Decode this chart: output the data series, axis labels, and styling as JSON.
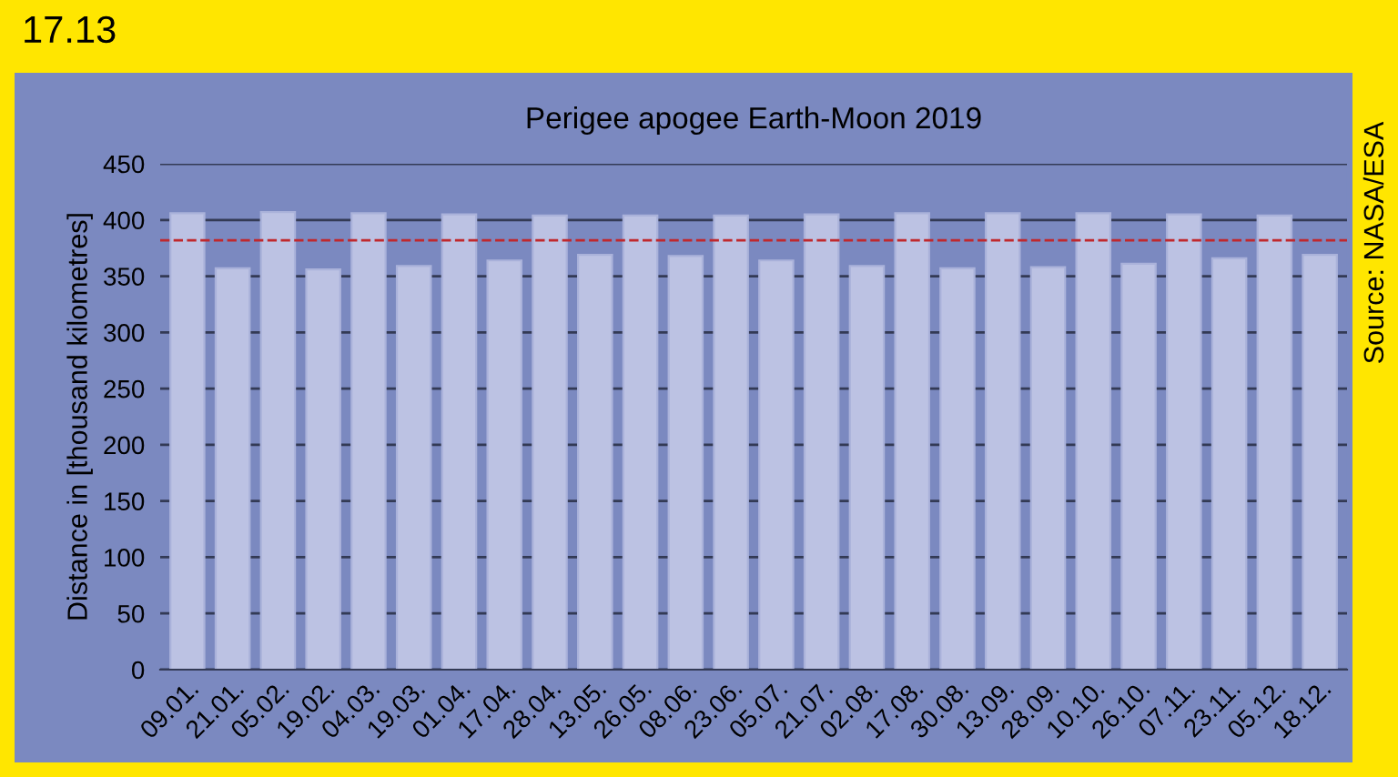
{
  "chart_data": {
    "type": "bar",
    "title": "Perigee apogee Earth-Moon 2019",
    "ylabel": "Distance in [thousand kilometres]",
    "annotations": [
      "17.13",
      "Source: NASA/ESA"
    ],
    "categories": [
      "09.01.",
      "21.01.",
      "05.02.",
      "19.02.",
      "04.03.",
      "19.03.",
      "01.04.",
      "17.04.",
      "28.04.",
      "13.05.",
      "26.05.",
      "08.06.",
      "23.06.",
      "05.07.",
      "21.07.",
      "02.08.",
      "17.08.",
      "30.08.",
      "13.09.",
      "28.09.",
      "10.10.",
      "26.10.",
      "07.11.",
      "23.11.",
      "05.12.",
      "18.12."
    ],
    "values": [
      406,
      357,
      407,
      356,
      406,
      359,
      405,
      364,
      404,
      369,
      404,
      368,
      404,
      364,
      405,
      359,
      406,
      357,
      406,
      358,
      406,
      361,
      405,
      366,
      404,
      369
    ],
    "color": "#bcc2e3",
    "ylim": [
      0,
      450
    ],
    "yticks": [
      0,
      50,
      100,
      150,
      200,
      250,
      300,
      350,
      400,
      450
    ],
    "grid": "y",
    "ref_lines": [
      {
        "axis": "y",
        "value": 382,
        "color": "#c0282d",
        "line_style": "dashed"
      }
    ]
  }
}
